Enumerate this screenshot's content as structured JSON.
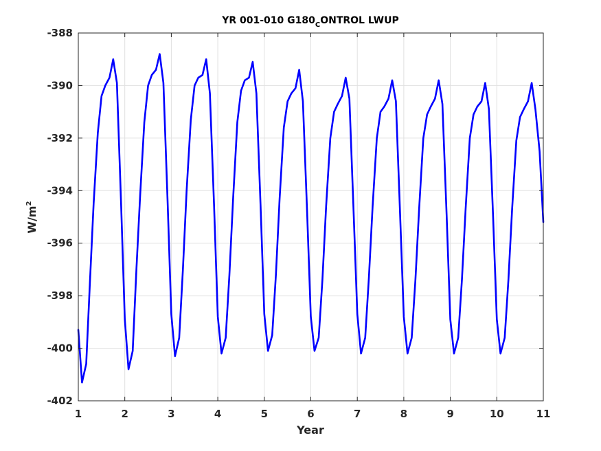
{
  "chart_data": {
    "type": "line",
    "title": "YR 001-010 G180_CONTROL LWUP",
    "title_parts": {
      "prefix": "YR 001-010 G180",
      "subscript": "C",
      "suffix": "ONTROL LWUP"
    },
    "xlabel": "Year",
    "ylabel": "W/m2",
    "ylabel_parts": {
      "base": "W/m",
      "superscript": "2"
    },
    "xlim": [
      1,
      11
    ],
    "ylim": [
      -402,
      -388
    ],
    "xticks": [
      1,
      2,
      3,
      4,
      5,
      6,
      7,
      8,
      9,
      10,
      11
    ],
    "yticks": [
      -402,
      -400,
      -398,
      -396,
      -394,
      -392,
      -390,
      -388
    ],
    "xtick_labels": [
      "1",
      "2",
      "3",
      "4",
      "5",
      "6",
      "7",
      "8",
      "9",
      "10",
      "11"
    ],
    "ytick_labels": [
      "-402",
      "-400",
      "-398",
      "-396",
      "-394",
      "-392",
      "-390",
      "-388"
    ],
    "grid": true,
    "colors": {
      "line": "#0000ff",
      "grid": "#e0e0e0",
      "axes": "#262626"
    },
    "series": [
      {
        "x": [
          1.0,
          1.08,
          1.17,
          1.25,
          1.33,
          1.42,
          1.5,
          1.58,
          1.67,
          1.75,
          1.83,
          1.92,
          2.0,
          2.08,
          2.17,
          2.25,
          2.33,
          2.42,
          2.5,
          2.58,
          2.67,
          2.75,
          2.83,
          2.92,
          3.0,
          3.08,
          3.17,
          3.25,
          3.33,
          3.42,
          3.5,
          3.58,
          3.67,
          3.75,
          3.83,
          3.92,
          4.0,
          4.08,
          4.17,
          4.25,
          4.33,
          4.42,
          4.5,
          4.58,
          4.67,
          4.75,
          4.83,
          4.92,
          5.0,
          5.08,
          5.17,
          5.25,
          5.33,
          5.42,
          5.5,
          5.58,
          5.67,
          5.75,
          5.83,
          5.92,
          6.0,
          6.08,
          6.17,
          6.25,
          6.33,
          6.42,
          6.5,
          6.58,
          6.67,
          6.75,
          6.83,
          6.92,
          7.0,
          7.08,
          7.17,
          7.25,
          7.33,
          7.42,
          7.5,
          7.58,
          7.67,
          7.75,
          7.83,
          7.92,
          8.0,
          8.08,
          8.17,
          8.25,
          8.33,
          8.42,
          8.5,
          8.58,
          8.67,
          8.75,
          8.83,
          8.92,
          9.0,
          9.08,
          9.17,
          9.25,
          9.33,
          9.42,
          9.5,
          9.58,
          9.67,
          9.75,
          9.83,
          9.92,
          10.0,
          10.08,
          10.17,
          10.25,
          10.33,
          10.42,
          10.5,
          10.58,
          10.67,
          10.75,
          10.83,
          10.92,
          11.0
        ],
        "values": [
          -399.3,
          -401.3,
          -400.6,
          -397.5,
          -394.5,
          -391.8,
          -390.4,
          -390.0,
          -389.7,
          -389.0,
          -389.9,
          -394.5,
          -398.9,
          -400.8,
          -400.1,
          -397.0,
          -394.2,
          -391.4,
          -390.0,
          -389.6,
          -389.4,
          -388.8,
          -389.9,
          -394.4,
          -398.7,
          -400.3,
          -399.6,
          -397.0,
          -394.0,
          -391.3,
          -390.0,
          -389.7,
          -389.6,
          -389.0,
          -390.3,
          -394.6,
          -398.8,
          -400.2,
          -399.6,
          -397.2,
          -394.3,
          -391.4,
          -390.2,
          -389.8,
          -389.7,
          -389.1,
          -390.3,
          -394.6,
          -398.7,
          -400.1,
          -399.5,
          -397.2,
          -394.3,
          -391.6,
          -390.6,
          -390.3,
          -390.1,
          -389.4,
          -390.6,
          -394.8,
          -398.8,
          -400.1,
          -399.6,
          -397.4,
          -394.6,
          -392.0,
          -391.0,
          -390.7,
          -390.4,
          -389.7,
          -390.5,
          -394.8,
          -398.7,
          -400.2,
          -399.6,
          -397.3,
          -394.6,
          -392.0,
          -391.0,
          -390.8,
          -390.5,
          -389.8,
          -390.6,
          -394.9,
          -398.8,
          -400.2,
          -399.6,
          -397.4,
          -394.7,
          -392.0,
          -391.1,
          -390.8,
          -390.5,
          -389.8,
          -390.7,
          -394.9,
          -398.9,
          -400.2,
          -399.6,
          -397.4,
          -394.7,
          -392.0,
          -391.1,
          -390.8,
          -390.6,
          -389.9,
          -390.9,
          -395.0,
          -398.9,
          -400.2,
          -399.6,
          -397.4,
          -394.7,
          -392.1,
          -391.2,
          -390.9,
          -390.6,
          -389.9,
          -390.9,
          -392.5,
          -395.2
        ]
      }
    ]
  }
}
